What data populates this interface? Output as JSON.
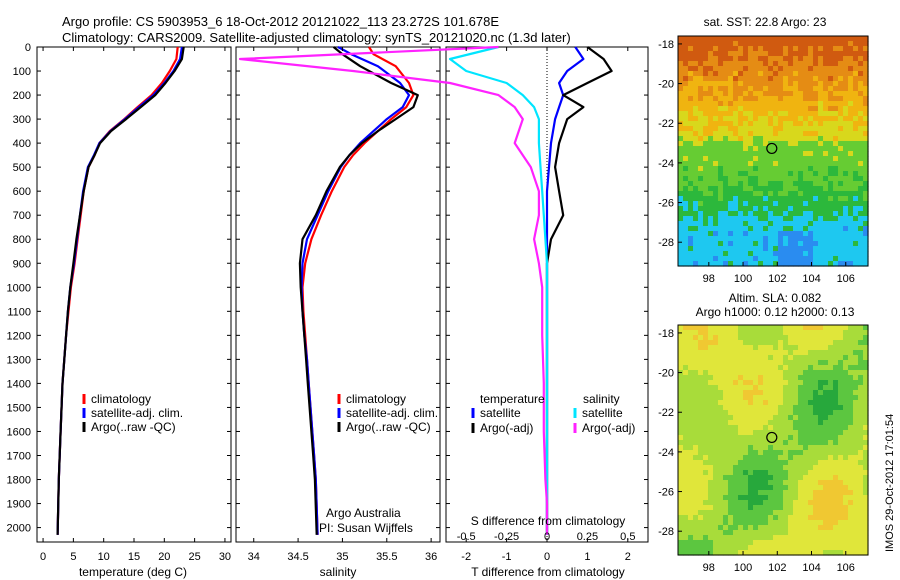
{
  "figure": {
    "title_line1": "Argo profile: CS 5903953_6 18-Oct-2012 20121022_113 23.272S 101.678E",
    "title_line2": "Climatology: CARS2009. Satellite-adjusted climatology: synTS_20121020.nc (1.3d later)",
    "credit_line1": "Argo Australia",
    "credit_line2": "PI: Susan Wijffels",
    "timestamp": "IMOS 29-Oct-2012 17:01:54"
  },
  "colors": {
    "climatology": "#ff0000",
    "satellite": "#0000ff",
    "argo": "#000000",
    "satellite_salinity": "#00e5ff",
    "argo_salinity_diff": "#ff22ff"
  },
  "chart_data": [
    {
      "type": "line",
      "xlabel": "temperature (deg C)",
      "xlim": [
        -1,
        31
      ],
      "xticks": [
        0,
        5,
        10,
        15,
        20,
        25,
        30
      ],
      "ylim": [
        2060,
        0
      ],
      "yticks": [
        0,
        100,
        200,
        300,
        400,
        500,
        600,
        700,
        800,
        900,
        1000,
        1100,
        1200,
        1300,
        1400,
        1500,
        1600,
        1700,
        1800,
        1900,
        2000
      ],
      "grid": false,
      "legend": "lower-center",
      "series": [
        {
          "name": "climatology",
          "color": "#ff0000",
          "x": [
            22.2,
            22.0,
            20.9,
            19.6,
            17.9,
            15.6,
            13.4,
            11.0,
            9.3,
            8.5,
            7.5,
            6.7,
            6.2,
            5.7,
            5.2,
            4.6,
            4.2,
            3.8,
            3.5,
            3.2,
            2.9,
            2.6,
            2.4
          ],
          "y": [
            0,
            50,
            100,
            150,
            200,
            250,
            300,
            350,
            400,
            450,
            500,
            600,
            700,
            800,
            900,
            1000,
            1100,
            1200,
            1300,
            1400,
            1600,
            1800,
            2030
          ]
        },
        {
          "name": "satellite-adj. clim.",
          "color": "#0000ff",
          "x": [
            22.9,
            22.6,
            21.5,
            20.0,
            18.2,
            15.8,
            13.5,
            11.1,
            9.3,
            8.4,
            7.4,
            6.6,
            6.1,
            5.6,
            5.1,
            4.5,
            4.1,
            3.8,
            3.5,
            3.2,
            2.9,
            2.6,
            2.4
          ],
          "y": [
            0,
            50,
            100,
            150,
            200,
            250,
            300,
            350,
            400,
            450,
            500,
            600,
            700,
            800,
            900,
            1000,
            1100,
            1200,
            1300,
            1400,
            1600,
            1800,
            2030
          ]
        },
        {
          "name": "Argo(..raw -QC)",
          "color": "#000000",
          "x": [
            23.2,
            22.9,
            21.7,
            20.2,
            18.5,
            16.1,
            13.7,
            11.2,
            9.4,
            8.5,
            7.5,
            6.7,
            6.1,
            5.5,
            5.0,
            4.5,
            4.1,
            3.8,
            3.5,
            3.2,
            2.9,
            2.6,
            2.4
          ],
          "y": [
            0,
            50,
            100,
            150,
            200,
            250,
            300,
            350,
            400,
            450,
            500,
            600,
            700,
            800,
            900,
            1000,
            1100,
            1200,
            1300,
            1400,
            1600,
            1800,
            2030
          ]
        }
      ]
    },
    {
      "type": "line",
      "xlabel": "salinity",
      "xlim": [
        33.8,
        36.1
      ],
      "xticks": [
        34,
        34.5,
        35,
        35.5,
        36
      ],
      "ylim": [
        2060,
        0
      ],
      "grid": false,
      "legend": "lower-center",
      "series": [
        {
          "name": "climatology",
          "color": "#ff0000",
          "x": [
            35.3,
            35.35,
            35.6,
            35.75,
            35.8,
            35.72,
            35.55,
            35.4,
            35.25,
            35.12,
            35.02,
            34.88,
            34.76,
            34.65,
            34.58,
            34.55,
            34.56,
            34.58,
            34.6,
            34.62,
            34.64,
            34.66,
            34.68,
            34.7,
            34.72
          ],
          "y": [
            0,
            30,
            80,
            150,
            200,
            250,
            300,
            350,
            400,
            450,
            500,
            600,
            700,
            800,
            900,
            1000,
            1100,
            1200,
            1300,
            1400,
            1500,
            1600,
            1700,
            1800,
            2030
          ]
        },
        {
          "name": "satellite-adj. clim.",
          "color": "#0000ff",
          "x": [
            34.95,
            35.1,
            35.4,
            35.65,
            35.75,
            35.68,
            35.5,
            35.35,
            35.2,
            35.08,
            34.98,
            34.84,
            34.72,
            34.6,
            34.55,
            34.54,
            34.55,
            34.57,
            34.6,
            34.62,
            34.64,
            34.66,
            34.68,
            34.7,
            34.72
          ],
          "y": [
            0,
            30,
            80,
            150,
            200,
            250,
            300,
            350,
            400,
            450,
            500,
            600,
            700,
            800,
            900,
            1000,
            1100,
            1200,
            1300,
            1400,
            1500,
            1600,
            1700,
            1800,
            2030
          ]
        },
        {
          "name": "Argo(..raw -QC)",
          "color": "#000000",
          "x": [
            34.9,
            35.0,
            35.2,
            35.55,
            35.85,
            35.8,
            35.6,
            35.4,
            35.22,
            35.08,
            34.97,
            34.82,
            34.7,
            34.55,
            34.52,
            34.53,
            34.55,
            34.57,
            34.59,
            34.61,
            34.63,
            34.65,
            34.67,
            34.69,
            34.71
          ],
          "y": [
            0,
            30,
            80,
            150,
            200,
            250,
            300,
            350,
            400,
            450,
            500,
            600,
            700,
            800,
            900,
            1000,
            1100,
            1200,
            1300,
            1400,
            1500,
            1600,
            1700,
            1800,
            2030
          ]
        }
      ]
    },
    {
      "type": "line",
      "xlabel": "T difference from climatology",
      "xlabel_top": "S difference from climatology",
      "xlim": [
        -2.5,
        2.5
      ],
      "xticks": [
        -2,
        -1,
        0,
        1,
        2
      ],
      "xtick_labels": [
        "-2",
        "-1",
        "0",
        "1",
        "2"
      ],
      "xticks_S": [
        -0.5,
        -0.25,
        0,
        0.25,
        0.5
      ],
      "xtick_labels_S": [
        "-0.5",
        "-0.25",
        "0",
        "0.25",
        "0.5"
      ],
      "ylim": [
        2060,
        0
      ],
      "grid": false,
      "legend": "lower-center",
      "legend_titles": [
        "temperature",
        "salinity"
      ],
      "series": [
        {
          "name": "satellite",
          "group": "temperature",
          "color": "#0000ff",
          "x": [
            0.7,
            0.9,
            0.5,
            0.3,
            0.4,
            0.3,
            0.2,
            0.1,
            0.05,
            0.0,
            0.0,
            0.0,
            0.0,
            0.0,
            0.0,
            0.0,
            0.0,
            0.0,
            0.0,
            0.0
          ],
          "y": [
            0,
            50,
            100,
            150,
            200,
            250,
            300,
            400,
            500,
            600,
            700,
            800,
            900,
            1000,
            1200,
            1400,
            1600,
            1800,
            1900,
            2030
          ]
        },
        {
          "name": "Argo(-adj)",
          "group": "temperature",
          "color": "#000000",
          "x": [
            1.0,
            1.4,
            1.6,
            1.0,
            0.4,
            0.9,
            0.5,
            0.3,
            0.2,
            0.3,
            0.4,
            0.1,
            0.0,
            0.0,
            0.0,
            0.0,
            0.0,
            0.0,
            0.0,
            0.0
          ],
          "y": [
            0,
            50,
            100,
            150,
            200,
            250,
            300,
            400,
            500,
            600,
            700,
            800,
            900,
            1000,
            1200,
            1400,
            1600,
            1800,
            1900,
            2030
          ]
        },
        {
          "name": "satellite",
          "group": "salinity",
          "color": "#00e5ff",
          "x": [
            -0.3,
            -0.6,
            -0.5,
            -0.25,
            -0.15,
            -0.08,
            -0.05,
            -0.05,
            -0.04,
            -0.03,
            -0.02,
            -0.01,
            0.0,
            0.0,
            0.0,
            0.0,
            0.0,
            0.0,
            0.0,
            0.0
          ],
          "y": [
            0,
            50,
            100,
            150,
            200,
            250,
            300,
            400,
            500,
            600,
            700,
            800,
            900,
            1000,
            1200,
            1400,
            1600,
            1800,
            1900,
            2030
          ]
        },
        {
          "name": "Argo(-adj)",
          "group": "salinity",
          "color": "#ff22ff",
          "x": [
            -0.3,
            -1.9,
            -1.2,
            -0.6,
            -0.3,
            -0.2,
            -0.15,
            -0.2,
            -0.1,
            -0.05,
            -0.05,
            -0.08,
            -0.05,
            -0.03,
            -0.03,
            -0.02,
            -0.02,
            -0.01,
            0.0,
            0.0
          ],
          "y": [
            0,
            50,
            100,
            150,
            200,
            250,
            300,
            400,
            500,
            600,
            700,
            800,
            900,
            1000,
            1200,
            1400,
            1600,
            1800,
            1900,
            2030
          ]
        }
      ]
    },
    {
      "type": "heatmap",
      "title": "sat. SST: 22.8 Argo: 23",
      "xticks": [
        98,
        100,
        102,
        104,
        106
      ],
      "yticks": [
        -18,
        -20,
        -22,
        -24,
        -26,
        -28
      ],
      "xlim": [
        96.2,
        107.3
      ],
      "ylim": [
        -29.2,
        -17.6
      ],
      "marker": {
        "lon": 101.68,
        "lat": -23.27
      },
      "palette": [
        "#2a8cf0",
        "#1ec8f0",
        "#2cb83c",
        "#66cc33",
        "#d8d81c",
        "#f0b410",
        "#e58c14",
        "#d05a10"
      ]
    },
    {
      "type": "heatmap",
      "title": "Altim. SLA: 0.082",
      "subtitle": "Argo h1000: 0.12 h2000: 0.13",
      "xticks": [
        98,
        100,
        102,
        104,
        106
      ],
      "yticks": [
        -18,
        -20,
        -22,
        -24,
        -26,
        -28
      ],
      "xlim": [
        96.2,
        107.3
      ],
      "ylim": [
        -29.2,
        -17.6
      ],
      "marker": {
        "lon": 101.68,
        "lat": -23.27
      },
      "palette": [
        "#27a83c",
        "#5cc640",
        "#a8dc3a",
        "#e0e63a",
        "#f0c832",
        "#ec9a2a"
      ]
    }
  ]
}
